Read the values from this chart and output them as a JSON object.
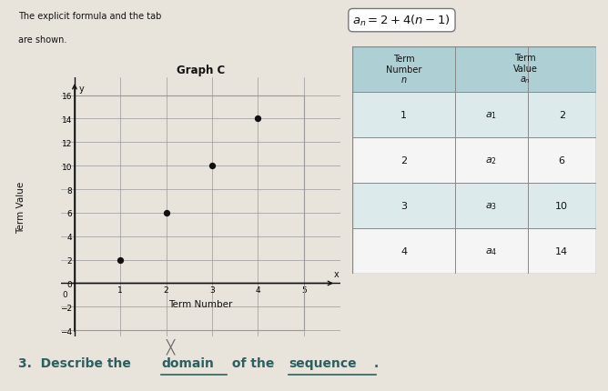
{
  "formula": "$a_n = 2 + 4(n - 1)$",
  "graph_title": "Graph C",
  "graph_xlabel": "Term Number",
  "graph_ylabel": "Term Value",
  "graph_points_x": [
    1,
    2,
    3,
    4
  ],
  "graph_points_y": [
    2,
    6,
    10,
    14
  ],
  "graph_xlim": [
    -0.3,
    5.8
  ],
  "graph_ylim": [
    -4.5,
    17.5
  ],
  "graph_xticks": [
    1,
    2,
    3,
    4,
    5
  ],
  "graph_yticks": [
    -4,
    -2,
    0,
    2,
    4,
    6,
    8,
    10,
    12,
    14,
    16
  ],
  "table_col1": [
    "1",
    "2",
    "3",
    "4"
  ],
  "table_col2": [
    "$a_1$",
    "$a_2$",
    "$a_3$",
    "$a_4$"
  ],
  "table_col3": [
    "2",
    "6",
    "10",
    "14"
  ],
  "page_color": "#e8e4dc",
  "table_header_bg": "#aecfd4",
  "table_row_bg_alt": "#ddeaeb",
  "table_row_bg_white": "#f5f5f5",
  "point_color": "#111111",
  "grid_color": "#999999",
  "axis_color": "#111111",
  "text_color": "#111111",
  "question_color": "#2d5f5f"
}
